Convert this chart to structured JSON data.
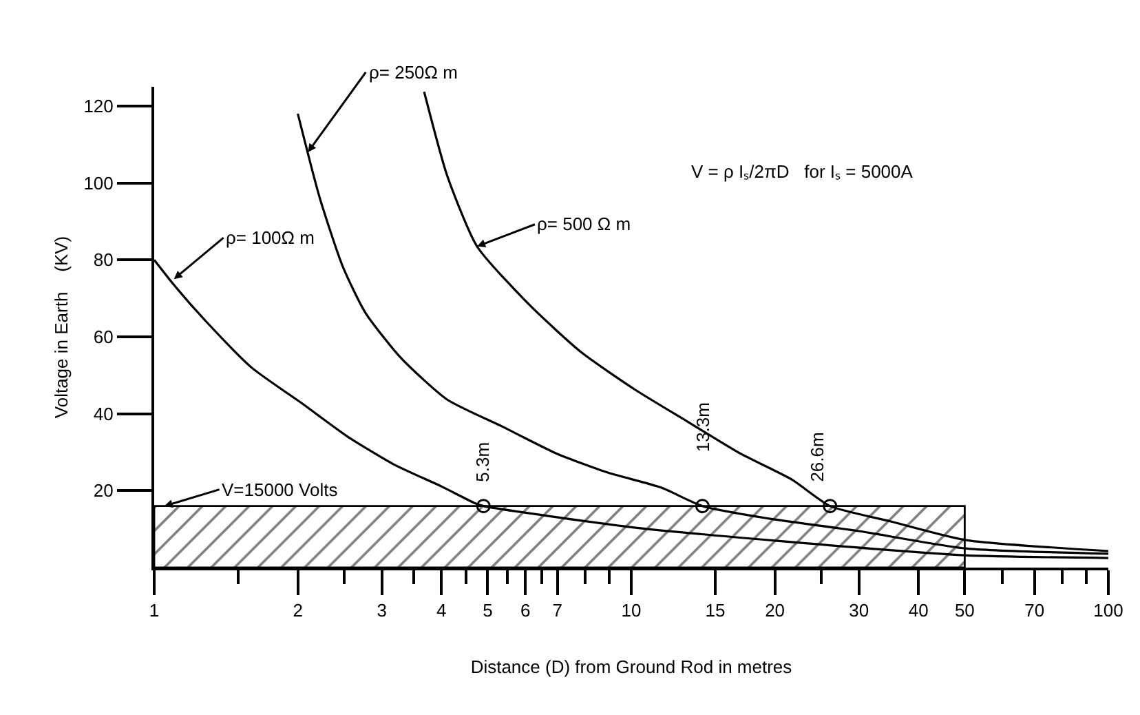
{
  "chart_data": {
    "type": "line",
    "xlabel": "Distance (D) from Ground Rod in metres",
    "ylabel": "Voltage in Earth    (KV)",
    "log": "x",
    "xlim": [
      1,
      100
    ],
    "ylim": [
      0,
      125
    ],
    "xticks": [
      1,
      {
        "value": 1.5,
        "label": null
      },
      2,
      {
        "value": 2.5,
        "label": null
      },
      3,
      {
        "value": 3.5,
        "label": null
      },
      4,
      {
        "value": 4.5,
        "label": null
      },
      5,
      {
        "value": 5.5,
        "label": null
      },
      6,
      {
        "value": 6.5,
        "label": null
      },
      7,
      {
        "value": 8,
        "label": null
      },
      {
        "value": 9,
        "label": null
      },
      10,
      15,
      20,
      {
        "value": 25,
        "label": null
      },
      30,
      40,
      50,
      {
        "value": 60,
        "label": null
      },
      70,
      {
        "value": 80,
        "label": null
      },
      {
        "value": 90,
        "label": null
      },
      100
    ],
    "yticks": [
      20,
      40,
      60,
      80,
      100,
      120
    ],
    "series": [
      {
        "type": "area",
        "color": "#000000",
        "x": [
          1,
          1,
          50,
          50,
          1
        ],
        "values": [
          0,
          16,
          16,
          0,
          0
        ]
      },
      {
        "color": "#000000",
        "x": [
          1,
          1.1,
          1.28,
          1.6,
          2.04,
          2.54,
          3.17,
          4.0,
          4.69,
          4.9,
          10,
          20,
          50,
          100
        ],
        "values": [
          80,
          73.5,
          64.2,
          52,
          42.7,
          34.1,
          26.9,
          21.1,
          16.8,
          16,
          10.5,
          7,
          3.2,
          2.5
        ]
      },
      {
        "color": "#000000",
        "x": [
          2.0,
          2.22,
          2.48,
          2.77,
          3.29,
          4.11,
          5.38,
          6.96,
          8.93,
          11.55,
          14.1,
          20,
          30,
          50,
          100
        ],
        "values": [
          118,
          96.4,
          78.5,
          66.3,
          54.5,
          43.7,
          36.6,
          29.7,
          24.7,
          20.8,
          16,
          12.5,
          9.5,
          5,
          3.6
        ]
      },
      {
        "color": "#000000",
        "x": [
          3.68,
          4.11,
          4.75,
          6.14,
          7.87,
          10.2,
          13.1,
          16.9,
          21.7,
          26.1,
          35,
          50,
          100
        ],
        "values": [
          123.7,
          102,
          83.5,
          68.1,
          55.9,
          46.2,
          38,
          29.7,
          22.9,
          16,
          12,
          7.2,
          4.3
        ]
      },
      {
        "type": "scatter",
        "color": "#000000",
        "marker": "circle",
        "x": [
          4.9,
          14.1,
          26.1
        ],
        "values": [
          16,
          16,
          16
        ]
      }
    ],
    "annotations": [
      {
        "text": "ρ= 100Ω m",
        "x": 1.1,
        "y": 75
      },
      {
        "text": "ρ= 250Ω m",
        "x": 2.1,
        "y": 108
      },
      {
        "text": "ρ= 500 Ω m",
        "x": 4.75,
        "y": 83.5
      },
      {
        "text": "V=15000 Volts",
        "x": 1.05,
        "y": 16
      },
      "5.3m",
      "13.3m",
      "26.6m",
      "V = ρ Iₛ/2πD   for Iₛ = 5000A"
    ]
  }
}
